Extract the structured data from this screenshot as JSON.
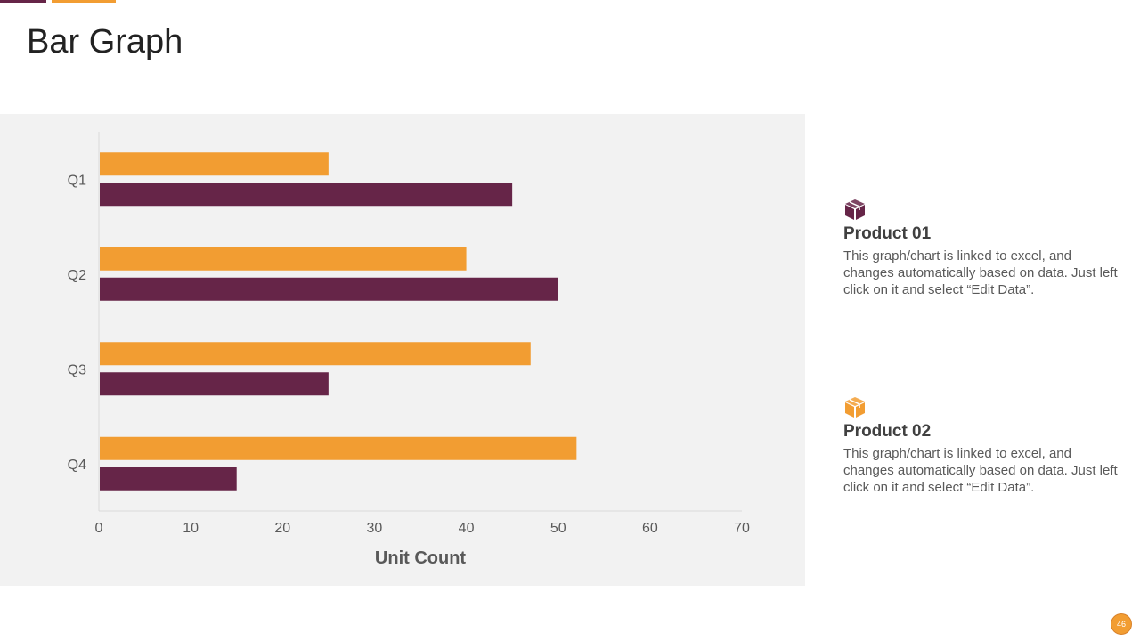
{
  "slide": {
    "title": "Bar Graph",
    "page_number": "46"
  },
  "legend": [
    {
      "name": "Product 01",
      "icon": "box-icon",
      "color": "#662548",
      "text": "This graph/chart is linked to excel, and changes automatically based on data. Just left click on it and select “Edit Data”."
    },
    {
      "name": "Product 02",
      "icon": "box-icon",
      "color": "#f29d32",
      "text": "This graph/chart is linked to excel, and changes automatically based on data. Just left click on it and select “Edit Data”."
    }
  ],
  "chart_data": {
    "type": "bar",
    "orientation": "horizontal",
    "categories": [
      "Q1",
      "Q2",
      "Q3",
      "Q4"
    ],
    "series": [
      {
        "name": "Product 02",
        "color": "#f29d32",
        "values": [
          25,
          40,
          47,
          52
        ]
      },
      {
        "name": "Product 01",
        "color": "#662548",
        "values": [
          45,
          50,
          25,
          15
        ]
      }
    ],
    "xlabel": "Unit Count",
    "ylabel": "",
    "xlim": [
      0,
      70
    ],
    "xticks": [
      0,
      10,
      20,
      30,
      40,
      50,
      60,
      70
    ],
    "grid": false,
    "legend_placement": "right"
  }
}
